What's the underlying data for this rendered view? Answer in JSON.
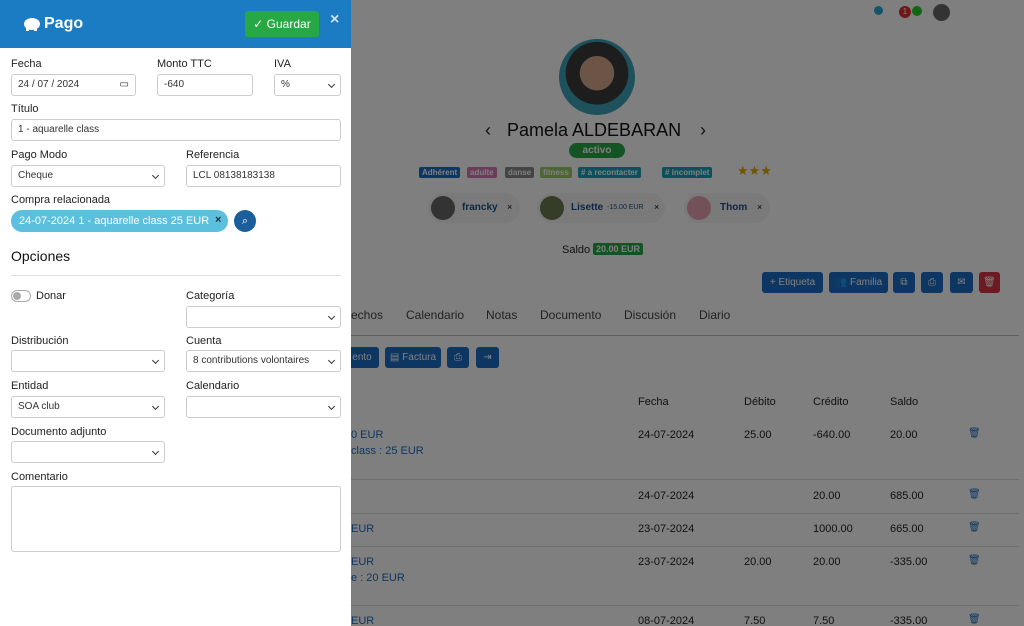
{
  "panel": {
    "title": "Pago",
    "save": "Guardar",
    "close": "×",
    "date_label": "Fecha",
    "date": "24 / 07 / 2024",
    "amount_label": "Monto TTC",
    "amount": "-640",
    "vat_label": "IVA",
    "vat": "%",
    "title_label": "Título",
    "title_value": "1 - aquarelle class",
    "mode_label": "Pago Modo",
    "mode": "Cheque",
    "ref_label": "Referencia",
    "ref": "LCL 08138183138",
    "purchase_label": "Compra relacionada",
    "purchase": "24-07-2024 1 - aquarelle class 25 EUR",
    "options": "Opciones",
    "donate": "Donar",
    "category_label": "Categoría",
    "distribution_label": "Distribución",
    "account_label": "Cuenta",
    "account": "8 contributions volontaires",
    "entity_label": "Entidad",
    "entity": "SOA club",
    "calendar_label": "Calendario",
    "attachment_label": "Documento adjunto",
    "comment_label": "Comentario"
  },
  "background": {
    "notif_count": "1",
    "name": "Pamela ALDEBARAN",
    "status": "activo",
    "tags": [
      "Adhérent",
      "adulte",
      "danse",
      "fitness",
      "# a recontacter",
      "# incomplet"
    ],
    "contacts": [
      {
        "name": "francky"
      },
      {
        "name": "Lisette",
        "note": "-15.00 EUR"
      },
      {
        "name": "Thom"
      }
    ],
    "balance_label": "Saldo",
    "balance": "20.00 EUR",
    "buttons": [
      "Etiqueta",
      "Familia"
    ],
    "tabs": [
      "echos",
      "Calendario",
      "Notas",
      "Documento",
      "Discusión",
      "Diario"
    ],
    "doc_buttons": [
      "ento",
      "Factura"
    ],
    "table": {
      "headers": [
        "Fecha",
        "Débito",
        "Crédito",
        "Saldo"
      ],
      "rows": [
        {
          "desc": [
            "0 EUR",
            "class : 25 EUR"
          ],
          "date": "24-07-2024",
          "debit": "25.00",
          "credit": "-640.00",
          "balance": "20.00"
        },
        {
          "date": "24-07-2024",
          "credit": "20.00",
          "balance": "685.00"
        },
        {
          "desc": [
            "EUR"
          ],
          "date": "23-07-2024",
          "credit": "1000.00",
          "balance": "665.00"
        },
        {
          "desc": [
            "EUR",
            "e : 20 EUR"
          ],
          "date": "23-07-2024",
          "debit": "20.00",
          "credit": "20.00",
          "balance": "-335.00"
        },
        {
          "desc": [
            "EUR"
          ],
          "date": "08-07-2024",
          "debit": "7.50",
          "credit": "7.50",
          "balance": "-335.00"
        }
      ]
    }
  }
}
